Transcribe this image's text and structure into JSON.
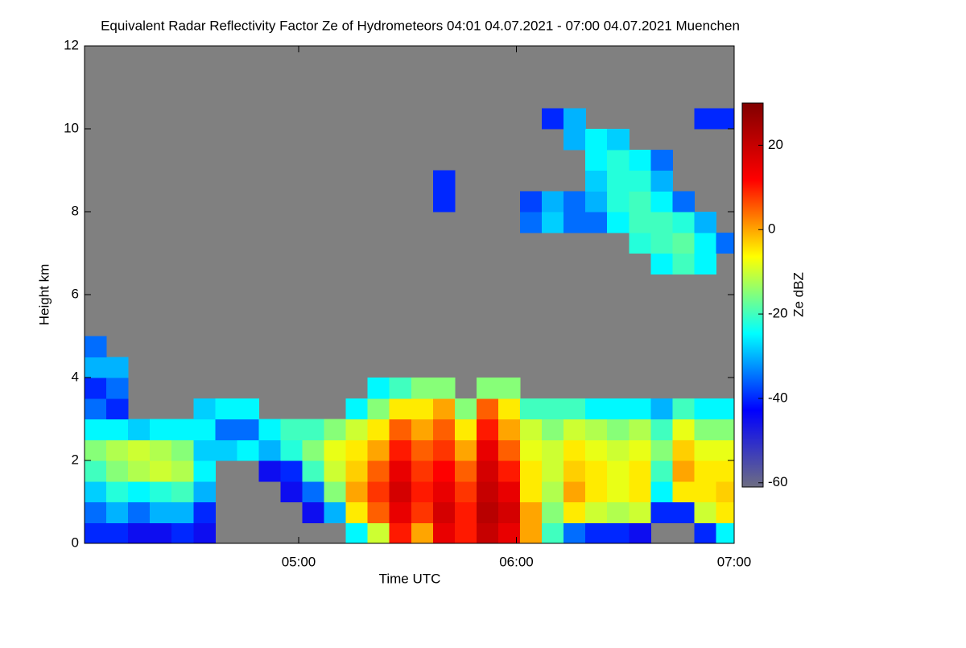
{
  "chart_data": {
    "type": "heatmap",
    "title": "Equivalent Radar Reflectivity Factor Ze of Hydrometeors   04:01 04.07.2021 - 07:00 04.07.2021 Muenchen",
    "xlabel": "Time UTC",
    "ylabel": "Height km",
    "colorbar_label": "Ze dBZ",
    "x": [
      "04:01",
      "04:07",
      "04:13",
      "04:19",
      "04:25",
      "04:31",
      "04:37",
      "04:43",
      "04:49",
      "04:55",
      "05:01",
      "05:07",
      "05:13",
      "05:19",
      "05:25",
      "05:31",
      "05:37",
      "05:43",
      "05:49",
      "05:55",
      "06:01",
      "06:07",
      "06:13",
      "06:19",
      "06:25",
      "06:31",
      "06:37",
      "06:43",
      "06:49",
      "06:55"
    ],
    "y": [
      0,
      0.5,
      1,
      1.5,
      2,
      2.5,
      3,
      3.5,
      4,
      4.5,
      5,
      5.5,
      6,
      6.5,
      7,
      7.5,
      8,
      8.5,
      9,
      9.5,
      10,
      10.5,
      11,
      11.5
    ],
    "z": [
      [
        -40,
        -40,
        -45,
        -45,
        -40,
        -45,
        null,
        null,
        null,
        null,
        null,
        null,
        -25,
        -10,
        10,
        0,
        15,
        10,
        20,
        15,
        0,
        -20,
        -35,
        -40,
        -40,
        -45,
        null,
        null,
        -40,
        -25
      ],
      [
        -35,
        -30,
        -35,
        -30,
        -30,
        -40,
        null,
        null,
        null,
        null,
        -45,
        -30,
        -5,
        5,
        15,
        8,
        18,
        10,
        22,
        18,
        0,
        -15,
        -5,
        -10,
        -12,
        -10,
        -40,
        -40,
        -10,
        -5
      ],
      [
        -28,
        -22,
        -25,
        -22,
        -20,
        -30,
        null,
        null,
        null,
        -45,
        -35,
        -15,
        0,
        8,
        18,
        10,
        15,
        8,
        20,
        15,
        -5,
        -12,
        0,
        -5,
        -8,
        -5,
        -25,
        -5,
        -5,
        -3
      ],
      [
        -20,
        -15,
        -12,
        -10,
        -12,
        -25,
        null,
        null,
        -45,
        -40,
        -20,
        -10,
        -3,
        5,
        15,
        8,
        12,
        5,
        18,
        10,
        -5,
        -10,
        -3,
        -5,
        -8,
        -5,
        -20,
        0,
        -5,
        -5
      ],
      [
        -15,
        -12,
        -10,
        -12,
        -15,
        -28,
        -28,
        -25,
        -30,
        -22,
        -15,
        -8,
        -5,
        0,
        10,
        5,
        8,
        0,
        15,
        5,
        -8,
        -10,
        -5,
        -8,
        -10,
        -8,
        -15,
        -3,
        -8,
        -8
      ],
      [
        -25,
        -25,
        -28,
        -25,
        -25,
        -25,
        -35,
        -35,
        -25,
        -20,
        -20,
        -15,
        -10,
        -5,
        5,
        0,
        5,
        -5,
        10,
        0,
        -10,
        -15,
        -10,
        -12,
        -15,
        -12,
        -20,
        -8,
        -15,
        -15
      ],
      [
        -35,
        -40,
        null,
        null,
        null,
        -28,
        -25,
        -25,
        null,
        null,
        null,
        null,
        -25,
        -15,
        -5,
        -5,
        0,
        -15,
        5,
        -5,
        -20,
        -20,
        -20,
        -25,
        -25,
        -25,
        -30,
        -20,
        -25,
        -25
      ],
      [
        -40,
        -35,
        null,
        null,
        null,
        null,
        null,
        null,
        null,
        null,
        null,
        null,
        null,
        -25,
        -20,
        -15,
        -15,
        null,
        -15,
        -15,
        null,
        null,
        null,
        null,
        null,
        null,
        null,
        null,
        null,
        null
      ],
      [
        -30,
        -30,
        null,
        null,
        null,
        null,
        null,
        null,
        null,
        null,
        null,
        null,
        null,
        null,
        null,
        null,
        null,
        null,
        null,
        null,
        null,
        null,
        null,
        null,
        null,
        null,
        null,
        null,
        null,
        null
      ],
      [
        -35,
        null,
        null,
        null,
        null,
        null,
        null,
        null,
        null,
        null,
        null,
        null,
        null,
        null,
        null,
        null,
        null,
        null,
        null,
        null,
        null,
        null,
        null,
        null,
        null,
        null,
        null,
        null,
        null,
        null
      ],
      [
        null,
        null,
        null,
        null,
        null,
        null,
        null,
        null,
        null,
        null,
        null,
        null,
        null,
        null,
        null,
        null,
        null,
        null,
        null,
        null,
        null,
        null,
        null,
        null,
        null,
        null,
        null,
        null,
        null,
        null
      ],
      [
        null,
        null,
        null,
        null,
        null,
        null,
        null,
        null,
        null,
        null,
        null,
        null,
        null,
        null,
        null,
        null,
        null,
        null,
        null,
        null,
        null,
        null,
        null,
        null,
        null,
        null,
        null,
        null,
        null,
        null
      ],
      [
        null,
        null,
        null,
        null,
        null,
        null,
        null,
        null,
        null,
        null,
        null,
        null,
        null,
        null,
        null,
        null,
        null,
        null,
        null,
        null,
        null,
        null,
        null,
        null,
        null,
        null,
        null,
        null,
        null,
        null
      ],
      [
        null,
        null,
        null,
        null,
        null,
        null,
        null,
        null,
        null,
        null,
        null,
        null,
        null,
        null,
        null,
        null,
        null,
        null,
        null,
        null,
        null,
        null,
        null,
        null,
        null,
        null,
        -25,
        -20,
        -25,
        null
      ],
      [
        null,
        null,
        null,
        null,
        null,
        null,
        null,
        null,
        null,
        null,
        null,
        null,
        null,
        null,
        null,
        null,
        null,
        null,
        null,
        null,
        null,
        null,
        null,
        null,
        null,
        -22,
        -20,
        -18,
        -25,
        -35
      ],
      [
        null,
        null,
        null,
        null,
        null,
        null,
        null,
        null,
        null,
        null,
        null,
        null,
        null,
        null,
        null,
        null,
        null,
        null,
        null,
        null,
        -35,
        -28,
        -35,
        -35,
        -25,
        -20,
        -20,
        -22,
        -30,
        null
      ],
      [
        null,
        null,
        null,
        null,
        null,
        null,
        null,
        null,
        null,
        null,
        null,
        null,
        null,
        null,
        null,
        null,
        -40,
        null,
        null,
        null,
        -38,
        -30,
        -35,
        -30,
        -22,
        -20,
        -25,
        -35,
        null,
        null
      ],
      [
        null,
        null,
        null,
        null,
        null,
        null,
        null,
        null,
        null,
        null,
        null,
        null,
        null,
        null,
        null,
        null,
        -40,
        null,
        null,
        null,
        null,
        null,
        null,
        -28,
        -22,
        -22,
        -30,
        null,
        null,
        null
      ],
      [
        null,
        null,
        null,
        null,
        null,
        null,
        null,
        null,
        null,
        null,
        null,
        null,
        null,
        null,
        null,
        null,
        null,
        null,
        null,
        null,
        null,
        null,
        null,
        -25,
        -22,
        -25,
        -35,
        null,
        null,
        null
      ],
      [
        null,
        null,
        null,
        null,
        null,
        null,
        null,
        null,
        null,
        null,
        null,
        null,
        null,
        null,
        null,
        null,
        null,
        null,
        null,
        null,
        null,
        null,
        -30,
        -25,
        -28,
        null,
        null,
        null,
        null,
        null
      ],
      [
        null,
        null,
        null,
        null,
        null,
        null,
        null,
        null,
        null,
        null,
        null,
        null,
        null,
        null,
        null,
        null,
        null,
        null,
        null,
        null,
        null,
        -40,
        -30,
        null,
        null,
        null,
        null,
        null,
        -40,
        -40
      ],
      [
        null,
        null,
        null,
        null,
        null,
        null,
        null,
        null,
        null,
        null,
        null,
        null,
        null,
        null,
        null,
        null,
        null,
        null,
        null,
        null,
        null,
        null,
        null,
        null,
        null,
        null,
        null,
        null,
        null,
        null
      ],
      [
        null,
        null,
        null,
        null,
        null,
        null,
        null,
        null,
        null,
        null,
        null,
        null,
        null,
        null,
        null,
        null,
        null,
        null,
        null,
        null,
        null,
        null,
        null,
        null,
        null,
        null,
        null,
        null,
        null,
        null
      ],
      [
        null,
        null,
        null,
        null,
        null,
        null,
        null,
        null,
        null,
        null,
        null,
        null,
        null,
        null,
        null,
        null,
        null,
        null,
        null,
        null,
        null,
        null,
        null,
        null,
        null,
        null,
        null,
        null,
        null,
        null
      ]
    ],
    "xlim": [
      "04:01",
      "07:00"
    ],
    "xticks": [
      "05:00",
      "06:00",
      "07:00"
    ],
    "ylim": [
      0,
      12
    ],
    "yticks": [
      0,
      2,
      4,
      6,
      8,
      10,
      12
    ],
    "zlim": [
      -61,
      30
    ],
    "zticks": [
      -60,
      -40,
      -20,
      0,
      20
    ],
    "colormap": [
      "#6e6e82",
      "#0000ff",
      "#00ffff",
      "#ffff00",
      "#ff0000",
      "#800000"
    ],
    "missing_color": "#808080"
  }
}
